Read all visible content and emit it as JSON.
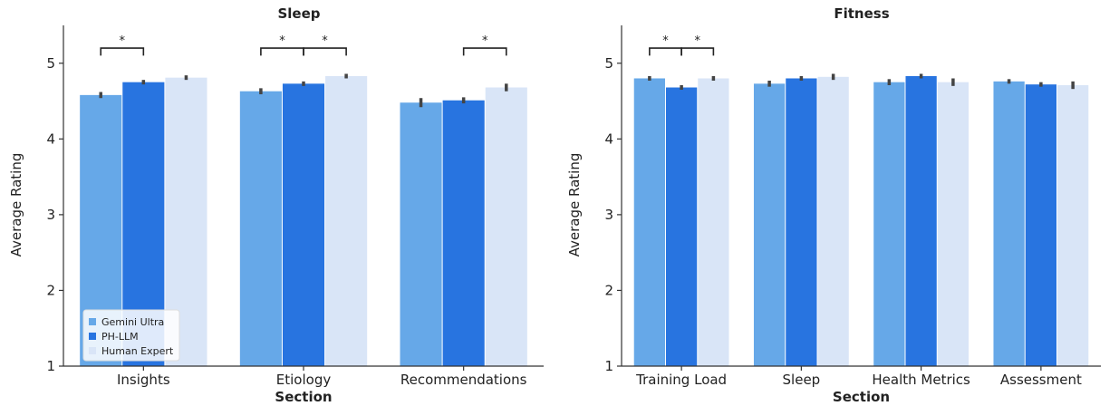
{
  "chart_data": [
    {
      "type": "bar",
      "title": "Sleep",
      "xlabel": "Section",
      "ylabel": "Average Rating",
      "ylim": [
        1,
        5.5
      ],
      "yticks": [
        1,
        2,
        3,
        4,
        5
      ],
      "categories": [
        "Insights",
        "Etiology",
        "Recommendations"
      ],
      "series": [
        {
          "name": "Gemini Ultra",
          "color": "#66a8e8",
          "values": [
            4.58,
            4.63,
            4.48
          ],
          "err": [
            0.04,
            0.04,
            0.06
          ]
        },
        {
          "name": "PH-LLM",
          "color": "#2874e0",
          "values": [
            4.75,
            4.73,
            4.51
          ],
          "err": [
            0.03,
            0.03,
            0.04
          ]
        },
        {
          "name": "Human Expert",
          "color": "#d9e5f7",
          "values": [
            4.81,
            4.83,
            4.68
          ],
          "err": [
            0.03,
            0.03,
            0.05
          ]
        }
      ],
      "significance": [
        {
          "category": 0,
          "from": 0,
          "to": 1,
          "label": "*"
        },
        {
          "category": 1,
          "from": 0,
          "to": 1,
          "label": "*"
        },
        {
          "category": 1,
          "from": 1,
          "to": 2,
          "label": "*"
        },
        {
          "category": 2,
          "from": 1,
          "to": 2,
          "label": "*"
        }
      ],
      "legend": {
        "placement": "lower-left",
        "entries": [
          "Gemini Ultra",
          "PH-LLM",
          "Human Expert"
        ]
      },
      "grid": false
    },
    {
      "type": "bar",
      "title": "Fitness",
      "xlabel": "Section",
      "ylabel": "Average Rating",
      "ylim": [
        1,
        5.5
      ],
      "yticks": [
        1,
        2,
        3,
        4,
        5
      ],
      "categories": [
        "Training Load",
        "Sleep",
        "Health Metrics",
        "Assessment"
      ],
      "series": [
        {
          "name": "Gemini Ultra",
          "color": "#66a8e8",
          "values": [
            4.8,
            4.73,
            4.75,
            4.76
          ],
          "err": [
            0.03,
            0.04,
            0.04,
            0.03
          ]
        },
        {
          "name": "PH-LLM",
          "color": "#2874e0",
          "values": [
            4.68,
            4.8,
            4.83,
            4.72
          ],
          "err": [
            0.03,
            0.03,
            0.03,
            0.03
          ]
        },
        {
          "name": "Human Expert",
          "color": "#d9e5f7",
          "values": [
            4.8,
            4.82,
            4.75,
            4.71
          ],
          "err": [
            0.03,
            0.04,
            0.05,
            0.05
          ]
        }
      ],
      "significance": [
        {
          "category": 0,
          "from": 0,
          "to": 1,
          "label": "*"
        },
        {
          "category": 0,
          "from": 1,
          "to": 2,
          "label": "*"
        }
      ],
      "grid": false
    }
  ]
}
